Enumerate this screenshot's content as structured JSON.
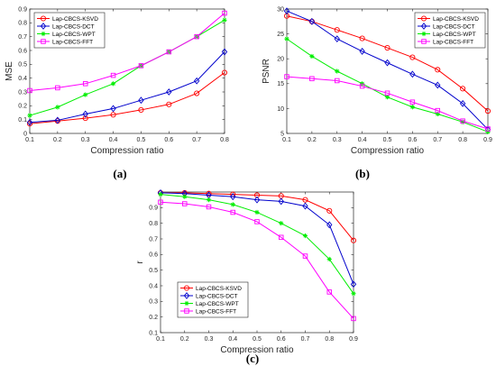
{
  "figure": {
    "panels": [
      {
        "id": "a",
        "label": "(a)",
        "chart_data": {
          "type": "line",
          "xlabel": "Compression ratio",
          "ylabel": "MSE",
          "xlim": [
            0.1,
            0.8
          ],
          "ylim": [
            0,
            0.9
          ],
          "xticks": [
            0.1,
            0.2,
            0.3,
            0.4,
            0.5,
            0.6,
            0.7,
            0.8
          ],
          "yticks": [
            0,
            0.1,
            0.2,
            0.3,
            0.4,
            0.5,
            0.6,
            0.7,
            0.8,
            0.9
          ],
          "legend_position": "top-left",
          "grid": false,
          "x": [
            0.1,
            0.2,
            0.3,
            0.4,
            0.5,
            0.6,
            0.7,
            0.8
          ],
          "series": [
            {
              "name": "Lap-CBCS-KSVD",
              "color": "#ff0000",
              "marker": "circle",
              "values": [
                0.07,
                0.09,
                0.11,
                0.135,
                0.17,
                0.21,
                0.29,
                0.44
              ]
            },
            {
              "name": "Lap-CBCS-DCT",
              "color": "#0000cc",
              "marker": "diamond",
              "values": [
                0.08,
                0.095,
                0.14,
                0.18,
                0.24,
                0.3,
                0.38,
                0.59
              ]
            },
            {
              "name": "Lap-CBCS-WPT",
              "color": "#00ee00",
              "marker": "star",
              "values": [
                0.13,
                0.19,
                0.28,
                0.36,
                0.49,
                0.59,
                0.7,
                0.82
              ]
            },
            {
              "name": "Lap-CBCS-FFT",
              "color": "#ff00ff",
              "marker": "square",
              "values": [
                0.31,
                0.33,
                0.36,
                0.42,
                0.49,
                0.59,
                0.7,
                0.87
              ]
            }
          ]
        }
      },
      {
        "id": "b",
        "label": "(b)",
        "chart_data": {
          "type": "line",
          "xlabel": "Compression ratio",
          "ylabel": "PSNR",
          "xlim": [
            0.1,
            0.9
          ],
          "ylim": [
            5,
            30
          ],
          "xticks": [
            0.1,
            0.2,
            0.3,
            0.4,
            0.5,
            0.6,
            0.7,
            0.8,
            0.9
          ],
          "yticks": [
            5,
            10,
            15,
            20,
            25,
            30
          ],
          "legend_position": "top-right",
          "grid": false,
          "x": [
            0.1,
            0.2,
            0.3,
            0.4,
            0.5,
            0.6,
            0.7,
            0.8,
            0.9
          ],
          "series": [
            {
              "name": "Lap-CBCS-KSVD",
              "color": "#ff0000",
              "marker": "circle",
              "values": [
                28.6,
                27.5,
                25.8,
                24.1,
                22.2,
                20.3,
                17.8,
                14.0,
                9.5
              ]
            },
            {
              "name": "Lap-CBCS-DCT",
              "color": "#0000cc",
              "marker": "diamond",
              "values": [
                29.6,
                27.5,
                24.0,
                21.5,
                19.2,
                16.9,
                14.7,
                11.0,
                5.8
              ]
            },
            {
              "name": "Lap-CBCS-WPT",
              "color": "#00ee00",
              "marker": "star",
              "values": [
                24.0,
                20.5,
                17.5,
                15.0,
                12.3,
                10.3,
                8.9,
                7.3,
                5.3
              ]
            },
            {
              "name": "Lap-CBCS-FFT",
              "color": "#ff00ff",
              "marker": "square",
              "values": [
                16.4,
                16.0,
                15.6,
                14.5,
                13.1,
                11.3,
                9.6,
                7.5,
                5.9
              ]
            }
          ]
        }
      },
      {
        "id": "c",
        "label": "(c)",
        "chart_data": {
          "type": "line",
          "xlabel": "Compression ratio",
          "ylabel": "r",
          "xlim": [
            0.1,
            0.9
          ],
          "ylim": [
            0.1,
            1.0
          ],
          "xticks": [
            0.1,
            0.2,
            0.3,
            0.4,
            0.5,
            0.6,
            0.7,
            0.8,
            0.9
          ],
          "yticks": [
            0.1,
            0.2,
            0.3,
            0.4,
            0.5,
            0.6,
            0.7,
            0.8,
            0.9
          ],
          "legend_position": "bottom-left",
          "grid": false,
          "x": [
            0.1,
            0.2,
            0.3,
            0.4,
            0.5,
            0.6,
            0.7,
            0.8,
            0.9
          ],
          "series": [
            {
              "name": "Lap-CBCS-KSVD",
              "color": "#ff0000",
              "marker": "circle",
              "values": [
                0.995,
                0.995,
                0.99,
                0.985,
                0.98,
                0.975,
                0.95,
                0.88,
                0.69
              ]
            },
            {
              "name": "Lap-CBCS-DCT",
              "color": "#0000cc",
              "marker": "diamond",
              "values": [
                0.995,
                0.99,
                0.98,
                0.97,
                0.95,
                0.94,
                0.91,
                0.79,
                0.41
              ]
            },
            {
              "name": "Lap-CBCS-WPT",
              "color": "#00ee00",
              "marker": "star",
              "values": [
                0.985,
                0.97,
                0.95,
                0.92,
                0.87,
                0.8,
                0.72,
                0.57,
                0.35
              ]
            },
            {
              "name": "Lap-CBCS-FFT",
              "color": "#ff00ff",
              "marker": "square",
              "values": [
                0.935,
                0.925,
                0.905,
                0.87,
                0.81,
                0.71,
                0.59,
                0.36,
                0.19
              ]
            }
          ]
        }
      }
    ]
  }
}
